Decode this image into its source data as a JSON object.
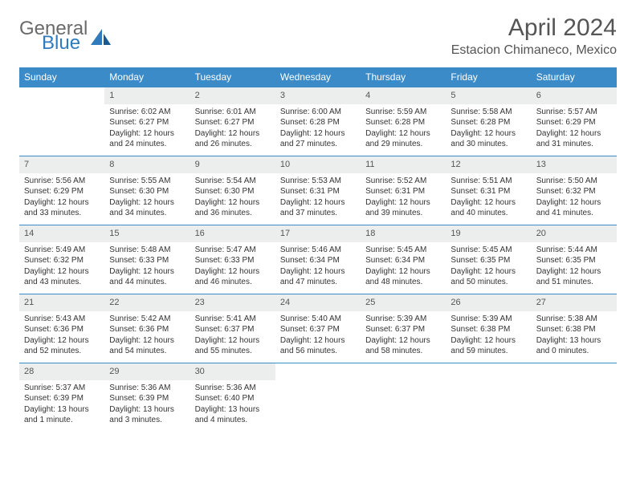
{
  "brand": {
    "part1": "General",
    "part2": "Blue"
  },
  "title": "April 2024",
  "location": "Estacion Chimaneco, Mexico",
  "colors": {
    "header_bg": "#3b8bc9",
    "header_text": "#ffffff",
    "daynum_bg": "#eceded",
    "border": "#3b8bc9",
    "brand_gray": "#6a6a6a",
    "brand_blue": "#2f7bbf"
  },
  "weekdays": [
    "Sunday",
    "Monday",
    "Tuesday",
    "Wednesday",
    "Thursday",
    "Friday",
    "Saturday"
  ],
  "weeks": [
    [
      {
        "empty": true
      },
      {
        "n": "1",
        "sr": "Sunrise: 6:02 AM",
        "ss": "Sunset: 6:27 PM",
        "dl": "Daylight: 12 hours and 24 minutes."
      },
      {
        "n": "2",
        "sr": "Sunrise: 6:01 AM",
        "ss": "Sunset: 6:27 PM",
        "dl": "Daylight: 12 hours and 26 minutes."
      },
      {
        "n": "3",
        "sr": "Sunrise: 6:00 AM",
        "ss": "Sunset: 6:28 PM",
        "dl": "Daylight: 12 hours and 27 minutes."
      },
      {
        "n": "4",
        "sr": "Sunrise: 5:59 AM",
        "ss": "Sunset: 6:28 PM",
        "dl": "Daylight: 12 hours and 29 minutes."
      },
      {
        "n": "5",
        "sr": "Sunrise: 5:58 AM",
        "ss": "Sunset: 6:28 PM",
        "dl": "Daylight: 12 hours and 30 minutes."
      },
      {
        "n": "6",
        "sr": "Sunrise: 5:57 AM",
        "ss": "Sunset: 6:29 PM",
        "dl": "Daylight: 12 hours and 31 minutes."
      }
    ],
    [
      {
        "n": "7",
        "sr": "Sunrise: 5:56 AM",
        "ss": "Sunset: 6:29 PM",
        "dl": "Daylight: 12 hours and 33 minutes."
      },
      {
        "n": "8",
        "sr": "Sunrise: 5:55 AM",
        "ss": "Sunset: 6:30 PM",
        "dl": "Daylight: 12 hours and 34 minutes."
      },
      {
        "n": "9",
        "sr": "Sunrise: 5:54 AM",
        "ss": "Sunset: 6:30 PM",
        "dl": "Daylight: 12 hours and 36 minutes."
      },
      {
        "n": "10",
        "sr": "Sunrise: 5:53 AM",
        "ss": "Sunset: 6:31 PM",
        "dl": "Daylight: 12 hours and 37 minutes."
      },
      {
        "n": "11",
        "sr": "Sunrise: 5:52 AM",
        "ss": "Sunset: 6:31 PM",
        "dl": "Daylight: 12 hours and 39 minutes."
      },
      {
        "n": "12",
        "sr": "Sunrise: 5:51 AM",
        "ss": "Sunset: 6:31 PM",
        "dl": "Daylight: 12 hours and 40 minutes."
      },
      {
        "n": "13",
        "sr": "Sunrise: 5:50 AM",
        "ss": "Sunset: 6:32 PM",
        "dl": "Daylight: 12 hours and 41 minutes."
      }
    ],
    [
      {
        "n": "14",
        "sr": "Sunrise: 5:49 AM",
        "ss": "Sunset: 6:32 PM",
        "dl": "Daylight: 12 hours and 43 minutes."
      },
      {
        "n": "15",
        "sr": "Sunrise: 5:48 AM",
        "ss": "Sunset: 6:33 PM",
        "dl": "Daylight: 12 hours and 44 minutes."
      },
      {
        "n": "16",
        "sr": "Sunrise: 5:47 AM",
        "ss": "Sunset: 6:33 PM",
        "dl": "Daylight: 12 hours and 46 minutes."
      },
      {
        "n": "17",
        "sr": "Sunrise: 5:46 AM",
        "ss": "Sunset: 6:34 PM",
        "dl": "Daylight: 12 hours and 47 minutes."
      },
      {
        "n": "18",
        "sr": "Sunrise: 5:45 AM",
        "ss": "Sunset: 6:34 PM",
        "dl": "Daylight: 12 hours and 48 minutes."
      },
      {
        "n": "19",
        "sr": "Sunrise: 5:45 AM",
        "ss": "Sunset: 6:35 PM",
        "dl": "Daylight: 12 hours and 50 minutes."
      },
      {
        "n": "20",
        "sr": "Sunrise: 5:44 AM",
        "ss": "Sunset: 6:35 PM",
        "dl": "Daylight: 12 hours and 51 minutes."
      }
    ],
    [
      {
        "n": "21",
        "sr": "Sunrise: 5:43 AM",
        "ss": "Sunset: 6:36 PM",
        "dl": "Daylight: 12 hours and 52 minutes."
      },
      {
        "n": "22",
        "sr": "Sunrise: 5:42 AM",
        "ss": "Sunset: 6:36 PM",
        "dl": "Daylight: 12 hours and 54 minutes."
      },
      {
        "n": "23",
        "sr": "Sunrise: 5:41 AM",
        "ss": "Sunset: 6:37 PM",
        "dl": "Daylight: 12 hours and 55 minutes."
      },
      {
        "n": "24",
        "sr": "Sunrise: 5:40 AM",
        "ss": "Sunset: 6:37 PM",
        "dl": "Daylight: 12 hours and 56 minutes."
      },
      {
        "n": "25",
        "sr": "Sunrise: 5:39 AM",
        "ss": "Sunset: 6:37 PM",
        "dl": "Daylight: 12 hours and 58 minutes."
      },
      {
        "n": "26",
        "sr": "Sunrise: 5:39 AM",
        "ss": "Sunset: 6:38 PM",
        "dl": "Daylight: 12 hours and 59 minutes."
      },
      {
        "n": "27",
        "sr": "Sunrise: 5:38 AM",
        "ss": "Sunset: 6:38 PM",
        "dl": "Daylight: 13 hours and 0 minutes."
      }
    ],
    [
      {
        "n": "28",
        "sr": "Sunrise: 5:37 AM",
        "ss": "Sunset: 6:39 PM",
        "dl": "Daylight: 13 hours and 1 minute."
      },
      {
        "n": "29",
        "sr": "Sunrise: 5:36 AM",
        "ss": "Sunset: 6:39 PM",
        "dl": "Daylight: 13 hours and 3 minutes."
      },
      {
        "n": "30",
        "sr": "Sunrise: 5:36 AM",
        "ss": "Sunset: 6:40 PM",
        "dl": "Daylight: 13 hours and 4 minutes."
      },
      {
        "empty": true
      },
      {
        "empty": true
      },
      {
        "empty": true
      },
      {
        "empty": true
      }
    ]
  ]
}
